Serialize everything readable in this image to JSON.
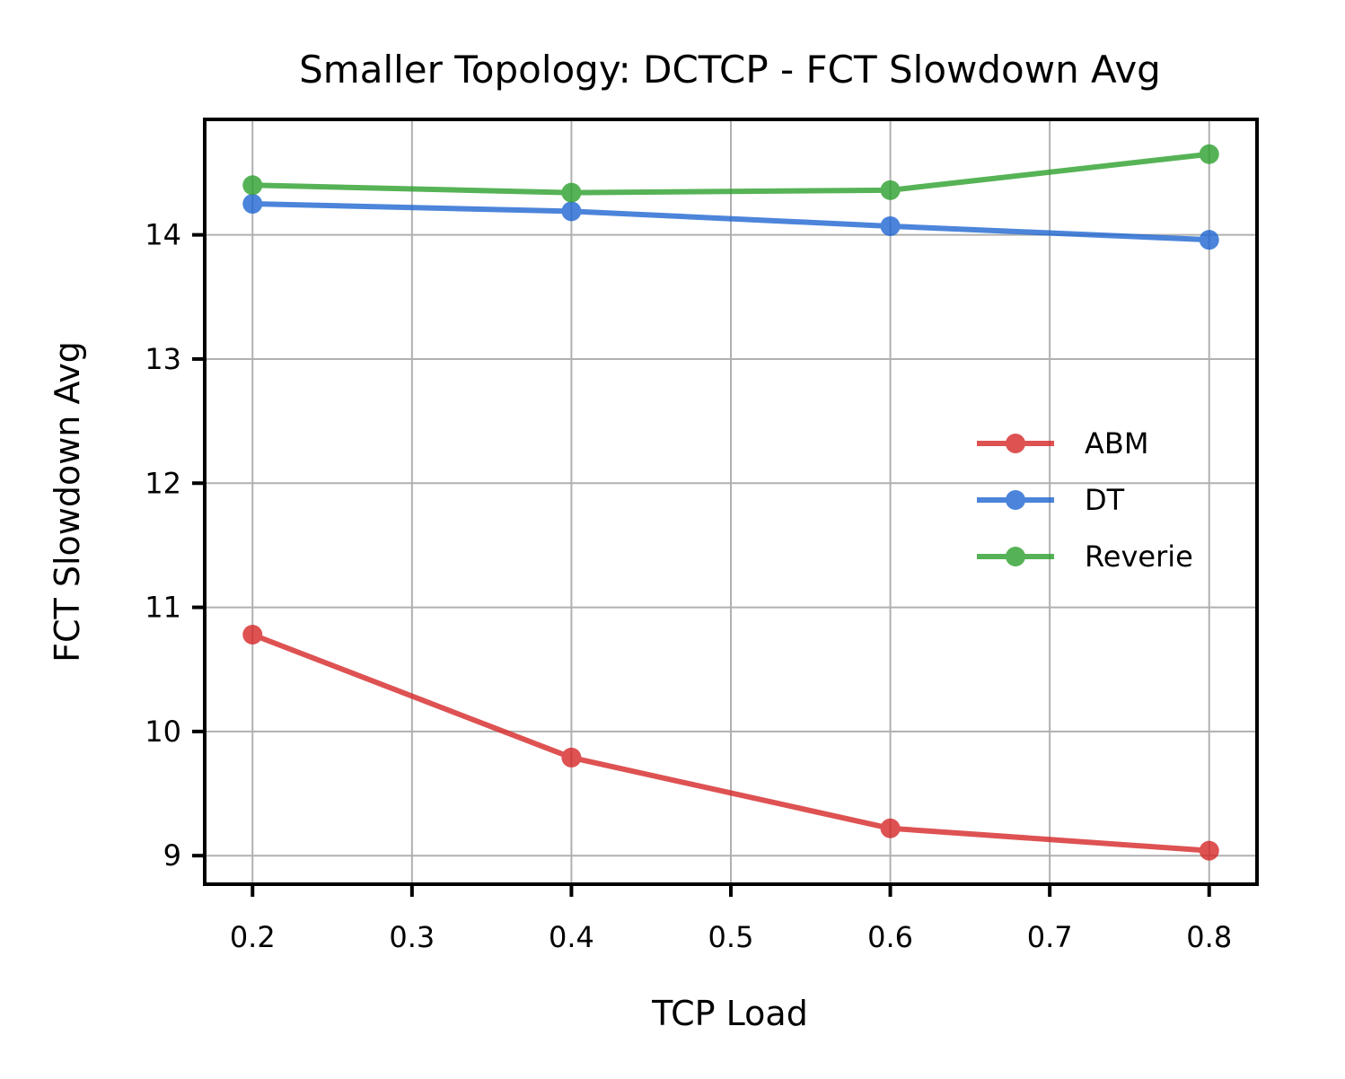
{
  "chart_data": {
    "type": "line",
    "title": "Smaller Topology: DCTCP - FCT Slowdown Avg",
    "xlabel": "TCP Load",
    "ylabel": "FCT Slowdown Avg",
    "x": [
      0.2,
      0.4,
      0.6,
      0.8
    ],
    "xticks": [
      0.2,
      0.3,
      0.4,
      0.5,
      0.6,
      0.7,
      0.8
    ],
    "xtick_labels": [
      "0.2",
      "0.3",
      "0.4",
      "0.5",
      "0.6",
      "0.7",
      "0.8"
    ],
    "yticks": [
      9,
      10,
      11,
      12,
      13,
      14
    ],
    "ytick_labels": [
      "9",
      "10",
      "11",
      "12",
      "13",
      "14"
    ],
    "xlim": [
      0.17,
      0.83
    ],
    "ylim": [
      8.77,
      14.93
    ],
    "grid": true,
    "legend_position": "center-right",
    "series": [
      {
        "name": "ABM",
        "color": "#d62728",
        "values": [
          10.78,
          9.79,
          9.22,
          9.04
        ]
      },
      {
        "name": "DT",
        "color": "#1f66d1",
        "values": [
          14.25,
          14.19,
          14.07,
          13.96
        ]
      },
      {
        "name": "Reverie",
        "color": "#2ca02c",
        "values": [
          14.4,
          14.34,
          14.36,
          14.65
        ]
      }
    ]
  }
}
